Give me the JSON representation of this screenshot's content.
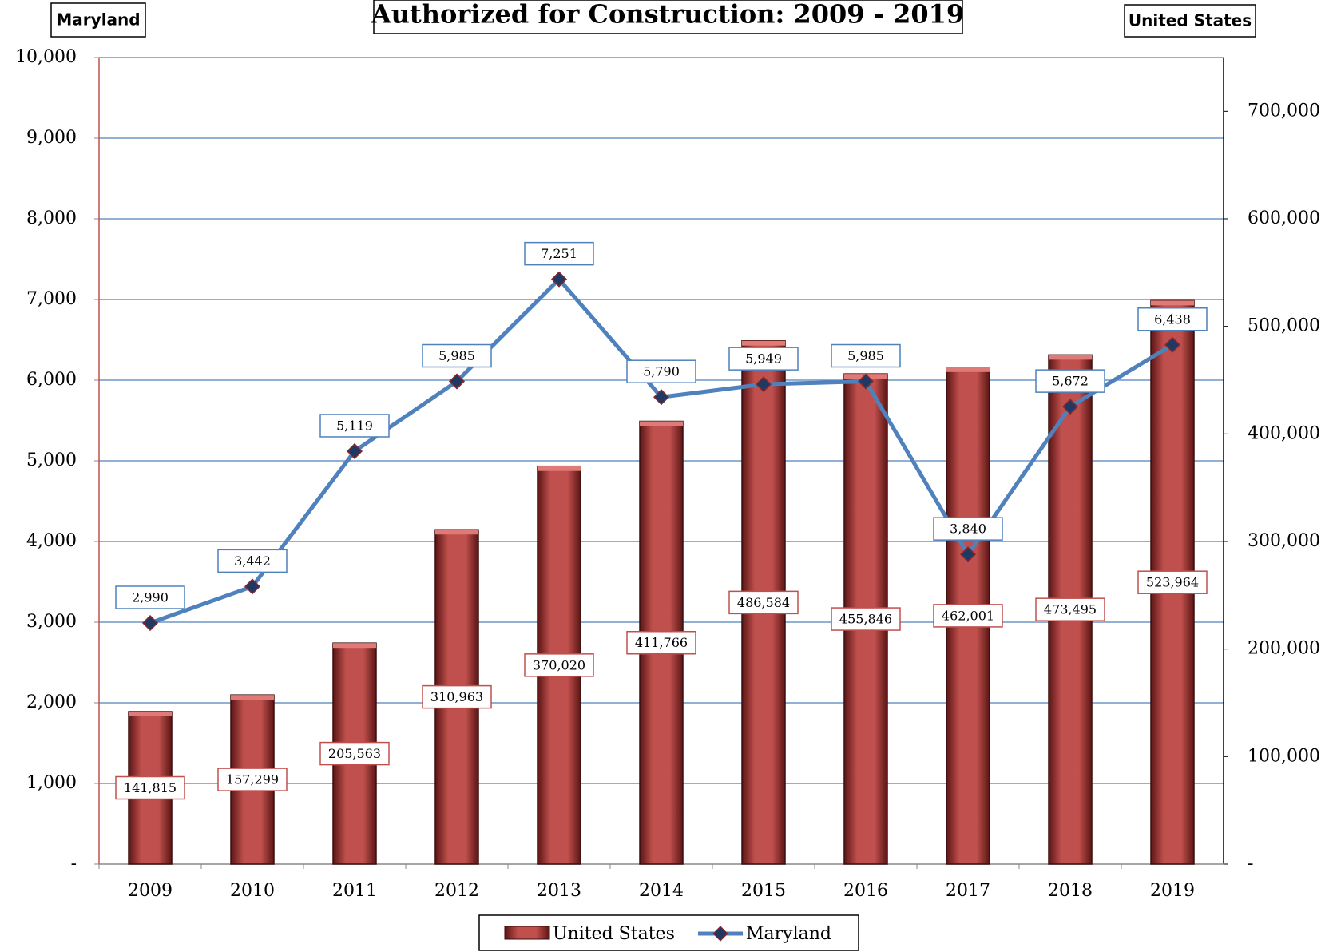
{
  "chart_data": {
    "type": "bar_line",
    "title": "Authorized for Construction:  2009 - 2019",
    "y_label": "Maryland",
    "y2_label": "United States",
    "categories": [
      "2009",
      "2010",
      "2011",
      "2012",
      "2013",
      "2014",
      "2015",
      "2016",
      "2017",
      "2018",
      "2019"
    ],
    "series": [
      {
        "name": "United States",
        "type": "bar",
        "axis": "y2",
        "color": "#c0504d",
        "values": [
          141815,
          157299,
          205563,
          310963,
          370020,
          411766,
          486584,
          455846,
          462001,
          473495,
          523964
        ],
        "value_labels": [
          "141,815",
          "157,299",
          "205,563",
          "310,963",
          "370,020",
          "411,766",
          "486,584",
          "455,846",
          "462,001",
          "473,495",
          "523,964"
        ]
      },
      {
        "name": "Maryland",
        "type": "line",
        "color": "#4f81bd",
        "values": [
          2990,
          3442,
          5119,
          5985,
          7251,
          5790,
          5949,
          5985,
          3840,
          5672,
          6438
        ],
        "value_labels": [
          "2,990",
          "3,442",
          "5,119",
          "5,985",
          "7,251",
          "5,790",
          "5,949",
          "5,985",
          "3,840",
          "5,672",
          "6,438"
        ]
      }
    ],
    "ylim": [
      0,
      10000
    ],
    "yticks": [
      {
        "value": 0,
        "label": "-"
      },
      {
        "value": 1000,
        "label": "1,000"
      },
      {
        "value": 2000,
        "label": "2,000"
      },
      {
        "value": 3000,
        "label": "3,000"
      },
      {
        "value": 4000,
        "label": "4,000"
      },
      {
        "value": 5000,
        "label": "5,000"
      },
      {
        "value": 6000,
        "label": "6,000"
      },
      {
        "value": 7000,
        "label": "7,000"
      },
      {
        "value": 8000,
        "label": "8,000"
      },
      {
        "value": 9000,
        "label": "9,000"
      },
      {
        "value": 10000,
        "label": "10,000"
      }
    ],
    "y2lim": [
      0,
      750000
    ],
    "y2ticks": [
      {
        "value": 0,
        "label": "-"
      },
      {
        "value": 100000,
        "label": "100,000"
      },
      {
        "value": 200000,
        "label": "200,000"
      },
      {
        "value": 300000,
        "label": "300,000"
      },
      {
        "value": 400000,
        "label": "400,000"
      },
      {
        "value": 500000,
        "label": "500,000"
      },
      {
        "value": 600000,
        "label": "600,000"
      },
      {
        "value": 700000,
        "label": "700,000"
      }
    ],
    "grid": true,
    "legend": "bottom"
  }
}
